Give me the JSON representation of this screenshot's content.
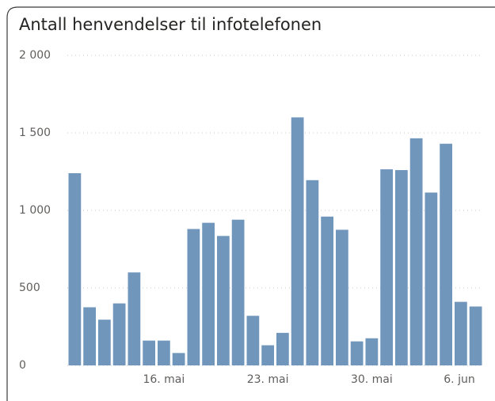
{
  "chart_data": {
    "type": "bar",
    "title": "Antall henvendelser til infotelefonen",
    "categories": [
      null,
      null,
      null,
      null,
      null,
      null,
      "16. mai",
      null,
      null,
      null,
      null,
      null,
      null,
      "23. mai",
      null,
      null,
      null,
      null,
      null,
      null,
      "30. mai",
      null,
      null,
      null,
      null,
      null,
      null,
      "6. jun"
    ],
    "values": [
      1240,
      375,
      295,
      400,
      600,
      160,
      160,
      80,
      880,
      920,
      835,
      940,
      320,
      130,
      210,
      1600,
      1195,
      960,
      875,
      155,
      175,
      1265,
      1260,
      1465,
      1115,
      1430,
      410,
      380
    ],
    "color": "#7096bb",
    "ylim": [
      0,
      2000
    ],
    "yticks": [
      0,
      500,
      {
        "value": 1000,
        "label": "1 000"
      },
      {
        "value": 1500,
        "label": "1 500"
      },
      {
        "value": 2000,
        "label": "2 000"
      }
    ],
    "grid": true
  }
}
